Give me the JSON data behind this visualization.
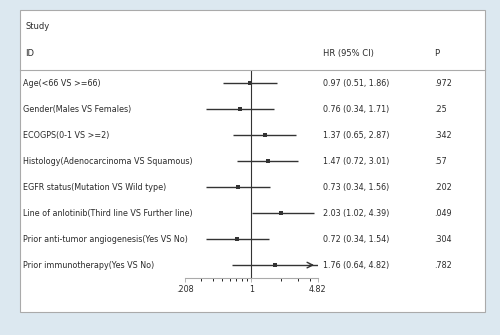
{
  "title": "Study",
  "col_id": "ID",
  "col_hr": "HR (95% CI)",
  "col_p": "P",
  "studies": [
    {
      "label": "Age(<66 VS >=66)",
      "hr": 0.97,
      "lo": 0.51,
      "hi": 1.86,
      "hr_text": "0.97 (0.51, 1.86)",
      "p_text": ".972",
      "arrow": false
    },
    {
      "label": "Gender(Males VS Females)",
      "hr": 0.76,
      "lo": 0.34,
      "hi": 1.71,
      "hr_text": "0.76 (0.34, 1.71)",
      "p_text": ".25",
      "arrow": false
    },
    {
      "label": "ECOGPS(0-1 VS >=2)",
      "hr": 1.37,
      "lo": 0.65,
      "hi": 2.87,
      "hr_text": "1.37 (0.65, 2.87)",
      "p_text": ".342",
      "arrow": false
    },
    {
      "label": "Histology(Adenocarcinoma VS Squamous)",
      "hr": 1.47,
      "lo": 0.72,
      "hi": 3.01,
      "hr_text": "1.47 (0.72, 3.01)",
      "p_text": ".57",
      "arrow": false
    },
    {
      "label": "EGFR status(Mutation VS Wild type)",
      "hr": 0.73,
      "lo": 0.34,
      "hi": 1.56,
      "hr_text": "0.73 (0.34, 1.56)",
      "p_text": ".202",
      "arrow": false
    },
    {
      "label": "Line of anlotinib(Third line VS Further line)",
      "hr": 2.03,
      "lo": 1.02,
      "hi": 4.39,
      "hr_text": "2.03 (1.02, 4.39)",
      "p_text": ".049",
      "arrow": false
    },
    {
      "label": "Prior anti-tumor angiogenesis(Yes VS No)",
      "hr": 0.72,
      "lo": 0.34,
      "hi": 1.54,
      "hr_text": "0.72 (0.34, 1.54)",
      "p_text": ".304",
      "arrow": false
    },
    {
      "label": "Prior immunotherapy(Yes VS No)",
      "hr": 1.76,
      "lo": 0.64,
      "hi": 4.82,
      "hr_text": "1.76 (0.64, 4.82)",
      "p_text": ".782",
      "arrow": true
    }
  ],
  "xmin": 0.208,
  "xmax": 4.82,
  "xticks": [
    0.208,
    1.0,
    4.82
  ],
  "xticklabels": [
    ".208",
    "1",
    "4.82"
  ],
  "vline_x": 1.0,
  "marker_size": 3.5,
  "lw": 1.0,
  "bg_color": "#dce8f0",
  "plot_bg_color": "#ffffff",
  "text_color": "#2b2b2b",
  "line_color": "#333333",
  "border_color": "#aaaaaa",
  "font_size": 5.8,
  "header_font_size": 6.0
}
